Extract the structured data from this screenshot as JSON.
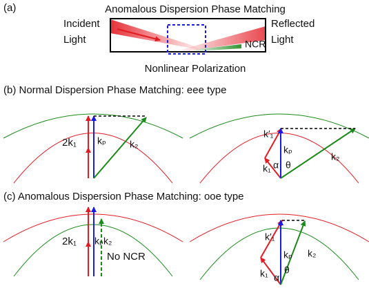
{
  "panel_a": {
    "label": "(a)",
    "title": "Anomalous Dispersion Phase Matching",
    "incident": [
      "Incident",
      "Light"
    ],
    "reflected": [
      "Reflected",
      "Light"
    ],
    "ncr": "NCR",
    "caption": "Nonlinear Polarization"
  },
  "panel_b": {
    "title": "(b) Normal Dispersion Phase Matching: eee type",
    "left": {
      "two_k1": "2k₁",
      "kp": "kₚ",
      "k2": "k₂"
    },
    "right": {
      "k1_prime": "k′₁",
      "kp": "kₚ",
      "k1": "k₁",
      "k2": "k₂",
      "alpha": "α",
      "theta": "θ"
    }
  },
  "panel_c": {
    "title": "(c) Anomalous Dispersion Phase Matching: ooe type",
    "left": {
      "two_k1": "2k₁",
      "kp": "kₚ",
      "k2": "k₂",
      "no_ncr": "No NCR"
    },
    "right": {
      "k1_prime": "k′₁",
      "kp": "kₚ",
      "k1": "k₁",
      "k2": "k₂",
      "alpha": "α",
      "theta": "θ"
    }
  }
}
